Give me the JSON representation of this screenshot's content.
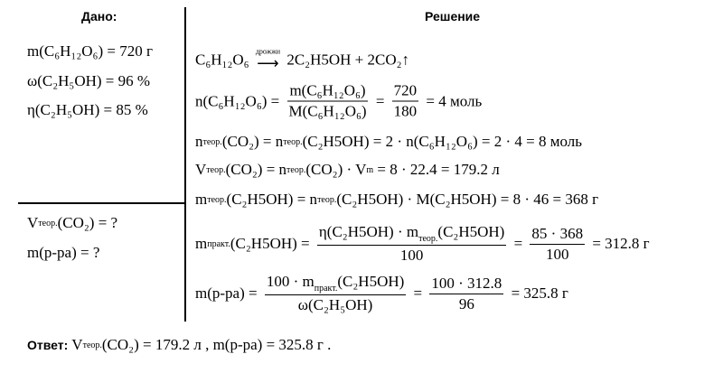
{
  "given": {
    "title": "Дано:",
    "lines": [
      [
        "m(C₆H₁₂O₆) = 720 г"
      ],
      [
        "ω(C₂H₅OH) = 96 %"
      ],
      [
        "η(C₂H₅OH) = 85 %"
      ]
    ]
  },
  "find": {
    "lines": [
      [
        "V",
        {
          "sub": "теор."
        },
        "(CO₂) = ?"
      ],
      [
        "m(р-ра) = ?"
      ]
    ]
  },
  "solution": {
    "title": "Решение",
    "lines": [
      [
        "C₆H₁₂O₆ ",
        {
          "arrow": "дрожжи"
        },
        " 2C₂H5OH + 2CO₂↑"
      ],
      [
        "n(C₆H₁₂O₆) = ",
        {
          "num": [
            "m(C₆H₁₂O₆)"
          ],
          "den": [
            "M(C₆H₁₂O₆)"
          ]
        },
        " = ",
        {
          "num": [
            "720"
          ],
          "den": [
            "180"
          ]
        },
        " = 4 моль"
      ],
      [
        "n",
        {
          "sub": "теор."
        },
        "(CO₂) = n",
        {
          "sub": "теор."
        },
        "(C₂H5OH) = 2 · n(C₆H₁₂O₆) = 2 · 4 = 8 моль"
      ],
      [
        "V",
        {
          "sub": "теор."
        },
        "(CO₂) = n",
        {
          "sub": "теор."
        },
        "(CO₂) · V",
        {
          "sub": "m"
        },
        " = 8 · 22.4 = 179.2 л"
      ],
      [
        "m",
        {
          "sub": "теор."
        },
        "(C₂H5OH) = n",
        {
          "sub": "теор."
        },
        "(C₂H5OH) · M(C₂H5OH) = 8 · 46 = 368 г"
      ],
      [
        "m",
        {
          "sub": "практ."
        },
        "(C₂H5OH) = ",
        {
          "num": [
            "η(C₂H5OH) · m",
            {
              "sub": "теор."
            },
            "(C₂H5OH)"
          ],
          "den": [
            "100"
          ]
        },
        " = ",
        {
          "num": [
            "85 · 368"
          ],
          "den": [
            "100"
          ]
        },
        " = 312.8 г"
      ],
      [
        "m(р-ра) = ",
        {
          "num": [
            "100 · m",
            {
              "sub": "практ."
            },
            "(C₂H5OH)"
          ],
          "den": [
            "ω(C₂H₅OH)"
          ]
        },
        " = ",
        {
          "num": [
            "100 · 312.8"
          ],
          "den": [
            "96"
          ]
        },
        " = 325.8 г"
      ]
    ]
  },
  "answer": {
    "label": "Ответ:",
    "line": [
      "V",
      {
        "sub": "теор."
      },
      "(CO₂) = 179.2 л , m(р-ра) = 325.8 г ."
    ]
  }
}
